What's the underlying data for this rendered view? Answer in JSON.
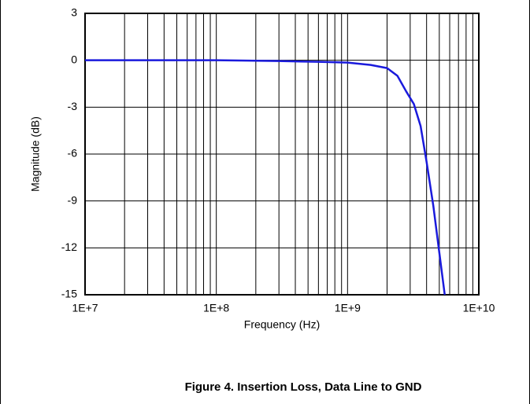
{
  "chart_data": {
    "type": "line",
    "title": "Figure 4. Insertion Loss, Data Line to GND",
    "xlabel": "Frequency (Hz)",
    "ylabel": "Magnitude (dB)",
    "xscale": "log",
    "grid": true,
    "xlim": [
      10000000,
      10000000000
    ],
    "xticks": [
      {
        "value": 10000000,
        "label": "1E+7"
      },
      {
        "value": 100000000,
        "label": "1E+8"
      },
      {
        "value": 1000000000,
        "label": "1E+9"
      },
      {
        "value": 10000000000,
        "label": "1E+10"
      }
    ],
    "ylim": [
      -15,
      3
    ],
    "yticks": [
      -15,
      -12,
      -9,
      -6,
      -3,
      0,
      3
    ],
    "series": [
      {
        "color": "#1a1adc",
        "x": [
          10000000,
          30000000,
          100000000,
          300000000,
          600000000,
          1000000000,
          1500000000,
          2000000000,
          2400000000,
          2800000000,
          3200000000,
          3600000000,
          4000000000,
          4500000000,
          5000000000,
          5500000000
        ],
        "values": [
          0,
          0,
          0,
          -0.05,
          -0.1,
          -0.15,
          -0.3,
          -0.5,
          -1,
          -2,
          -2.8,
          -4.2,
          -6.5,
          -9.3,
          -12.3,
          -15
        ]
      }
    ]
  }
}
